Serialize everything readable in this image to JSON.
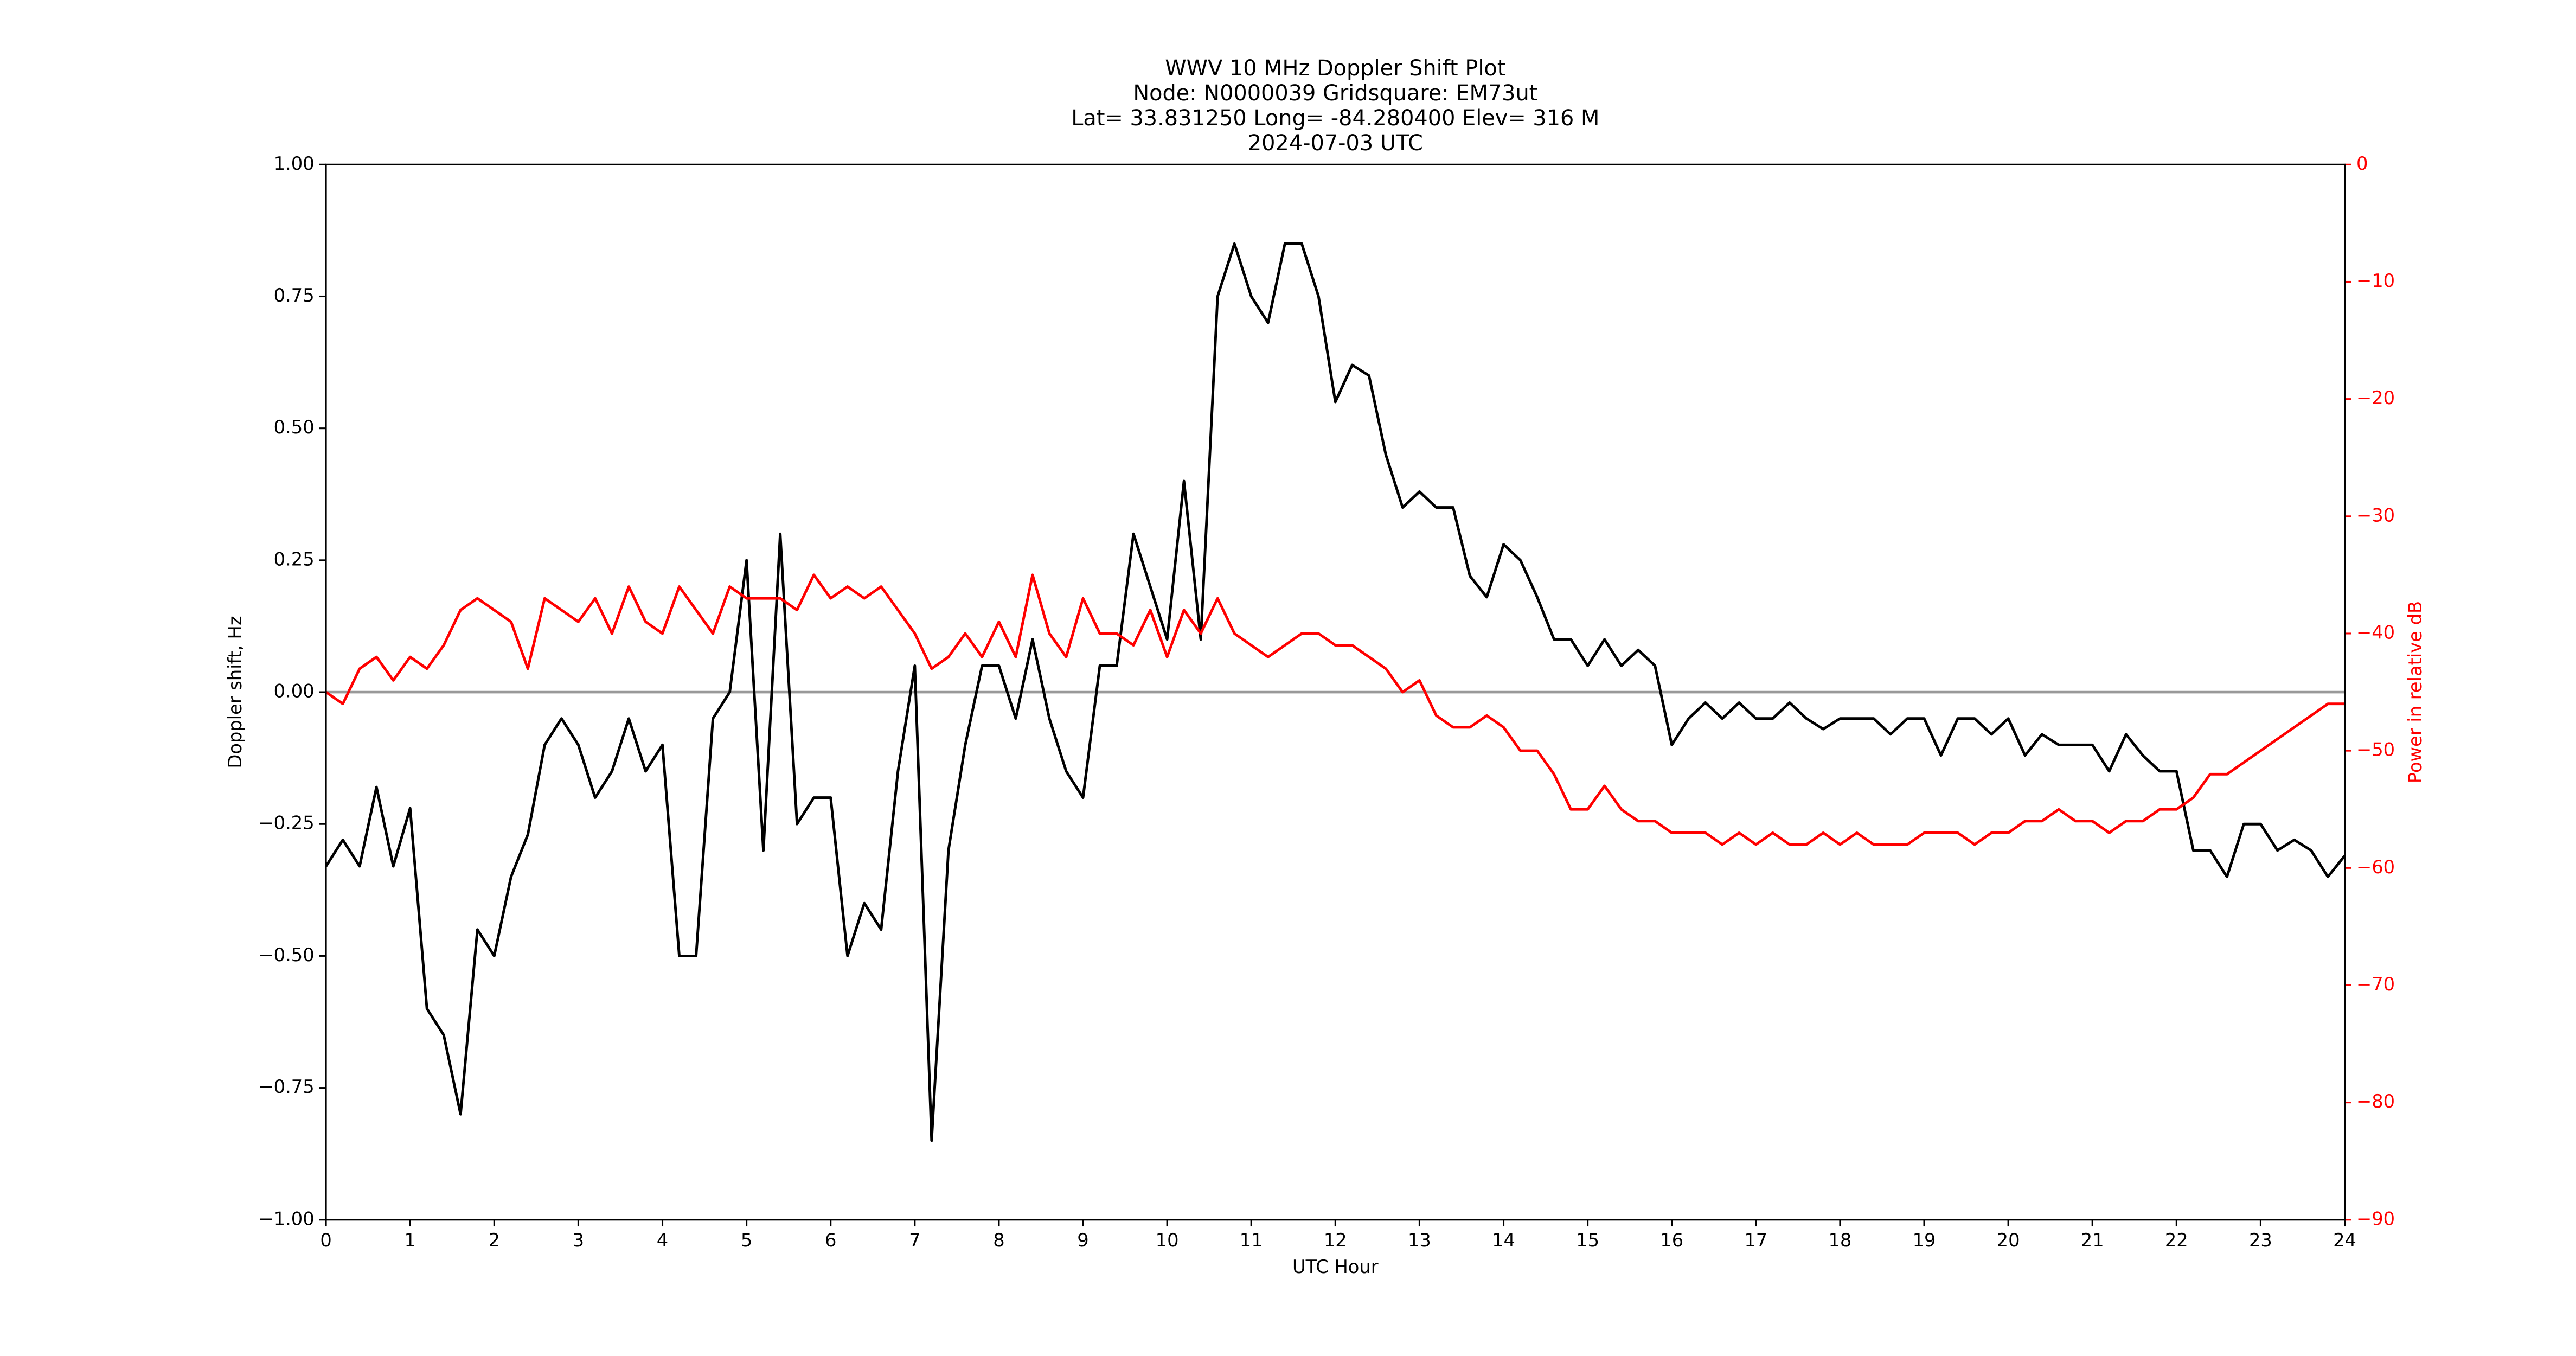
{
  "chart_data": {
    "type": "line",
    "title": [
      "WWV 10 MHz Doppler Shift Plot",
      "Node:  N0000039     Gridsquare:  EM73ut",
      "Lat= 33.831250    Long= -84.280400    Elev= 316 M",
      "2024-07-03  UTC"
    ],
    "xlabel": "UTC Hour",
    "ylabel": "Doppler shift, Hz",
    "y2label": "Power in relative dB",
    "x": [
      0,
      0.2,
      0.4,
      0.6,
      0.8,
      1,
      1.2,
      1.4,
      1.6,
      1.8,
      2,
      2.2,
      2.4,
      2.6,
      2.8,
      3,
      3.2,
      3.4,
      3.6,
      3.8,
      4,
      4.2,
      4.4,
      4.6,
      4.8,
      5,
      5.2,
      5.4,
      5.6,
      5.8,
      6,
      6.2,
      6.4,
      6.6,
      6.8,
      7,
      7.2,
      7.4,
      7.6,
      7.8,
      8,
      8.2,
      8.4,
      8.6,
      8.8,
      9,
      9.2,
      9.4,
      9.6,
      9.8,
      10,
      10.2,
      10.4,
      10.6,
      10.8,
      11,
      11.2,
      11.4,
      11.6,
      11.8,
      12,
      12.2,
      12.4,
      12.6,
      12.8,
      13,
      13.2,
      13.4,
      13.6,
      13.8,
      14,
      14.2,
      14.4,
      14.6,
      14.8,
      15,
      15.2,
      15.4,
      15.6,
      15.8,
      16,
      16.2,
      16.4,
      16.6,
      16.8,
      17,
      17.2,
      17.4,
      17.6,
      17.8,
      18,
      18.2,
      18.4,
      18.6,
      18.8,
      19,
      19.2,
      19.4,
      19.6,
      19.8,
      20,
      20.2,
      20.4,
      20.6,
      20.8,
      21,
      21.2,
      21.4,
      21.6,
      21.8,
      22,
      22.2,
      22.4,
      22.6,
      22.8,
      23,
      23.2,
      23.4,
      23.6,
      23.8,
      24
    ],
    "series": [
      {
        "color": "#000000",
        "values": [
          -0.33,
          -0.28,
          -0.33,
          -0.18,
          -0.33,
          -0.22,
          -0.6,
          -0.65,
          -0.8,
          -0.45,
          -0.5,
          -0.35,
          -0.27,
          -0.1,
          -0.05,
          -0.1,
          -0.2,
          -0.15,
          -0.05,
          -0.15,
          -0.1,
          -0.5,
          -0.5,
          -0.05,
          0,
          0.25,
          -0.3,
          0.3,
          -0.25,
          -0.2,
          -0.2,
          -0.5,
          -0.4,
          -0.45,
          -0.15,
          0.05,
          -0.85,
          -0.3,
          -0.1,
          0.05,
          0.05,
          -0.05,
          0.1,
          -0.05,
          -0.15,
          -0.2,
          0.05,
          0.05,
          0.3,
          0.2,
          0.1,
          0.4,
          0.1,
          0.75,
          0.85,
          0.75,
          0.7,
          0.85,
          0.85,
          0.75,
          0.55,
          0.62,
          0.6,
          0.45,
          0.35,
          0.38,
          0.35,
          0.35,
          0.22,
          0.18,
          0.28,
          0.25,
          0.18,
          0.1,
          0.1,
          0.05,
          0.1,
          0.05,
          0.08,
          0.05,
          -0.1,
          -0.05,
          -0.02,
          -0.05,
          -0.02,
          -0.05,
          -0.05,
          -0.02,
          -0.05,
          -0.07,
          -0.05,
          -0.05,
          -0.05,
          -0.08,
          -0.05,
          -0.05,
          -0.12,
          -0.05,
          -0.05,
          -0.08,
          -0.05,
          -0.12,
          -0.08,
          -0.1,
          -0.1,
          -0.1,
          -0.15,
          -0.08,
          -0.12,
          -0.15,
          -0.15,
          -0.3,
          -0.3,
          -0.35,
          -0.25,
          -0.25,
          -0.3,
          -0.28,
          -0.3,
          -0.35,
          -0.31
        ]
      },
      {
        "color": "#ff0000",
        "axis": "y2",
        "values": [
          -45,
          -46,
          -43,
          -42,
          -44,
          -42,
          -43,
          -41,
          -38,
          -37,
          -38,
          -39,
          -43,
          -37,
          -38,
          -39,
          -37,
          -40,
          -36,
          -39,
          -40,
          -36,
          -38,
          -40,
          -36,
          -37,
          -37,
          -37,
          -38,
          -35,
          -37,
          -36,
          -37,
          -36,
          -38,
          -40,
          -43,
          -42,
          -40,
          -42,
          -39,
          -42,
          -35,
          -40,
          -42,
          -37,
          -40,
          -40,
          -41,
          -38,
          -42,
          -38,
          -40,
          -37,
          -40,
          -41,
          -42,
          -41,
          -40,
          -40,
          -41,
          -41,
          -42,
          -43,
          -45,
          -44,
          -47,
          -48,
          -48,
          -47,
          -48,
          -50,
          -50,
          -52,
          -55,
          -55,
          -53,
          -55,
          -56,
          -56,
          -57,
          -57,
          -57,
          -58,
          -57,
          -58,
          -57,
          -58,
          -58,
          -57,
          -58,
          -57,
          -58,
          -58,
          -58,
          -57,
          -57,
          -57,
          -58,
          -57,
          -57,
          -56,
          -56,
          -55,
          -56,
          -56,
          -57,
          -56,
          -56,
          -55,
          -55,
          -54,
          -52,
          -52,
          -51,
          -50,
          -49,
          -48,
          -47,
          -46,
          -46
        ]
      }
    ],
    "reference_line": 0,
    "reference_color": "#999999",
    "xlim": [
      0,
      24
    ],
    "xticks": [
      0,
      1,
      2,
      3,
      4,
      5,
      6,
      7,
      8,
      9,
      10,
      11,
      12,
      13,
      14,
      15,
      16,
      17,
      18,
      19,
      20,
      21,
      22,
      23,
      24
    ],
    "ylim": [
      -1,
      1
    ],
    "yticks": [
      {
        "value": -1,
        "label": "−1.00"
      },
      {
        "value": -0.75,
        "label": "−0.75"
      },
      {
        "value": -0.5,
        "label": "−0.50"
      },
      {
        "value": -0.25,
        "label": "−0.25"
      },
      {
        "value": 0,
        "label": "0.00"
      },
      {
        "value": 0.25,
        "label": "0.25"
      },
      {
        "value": 0.5,
        "label": "0.50"
      },
      {
        "value": 0.75,
        "label": "0.75"
      },
      {
        "value": 1,
        "label": "1.00"
      }
    ],
    "y2lim": [
      -90,
      0
    ],
    "y2ticks": [
      {
        "value": -90,
        "label": "−90"
      },
      {
        "value": -80,
        "label": "−80"
      },
      {
        "value": -70,
        "label": "−70"
      },
      {
        "value": -60,
        "label": "−60"
      },
      {
        "value": -50,
        "label": "−50"
      },
      {
        "value": -40,
        "label": "−40"
      },
      {
        "value": -30,
        "label": "−30"
      },
      {
        "value": -20,
        "label": "−20"
      },
      {
        "value": -10,
        "label": "−10"
      },
      0
    ],
    "y2color": "#ff0000"
  }
}
